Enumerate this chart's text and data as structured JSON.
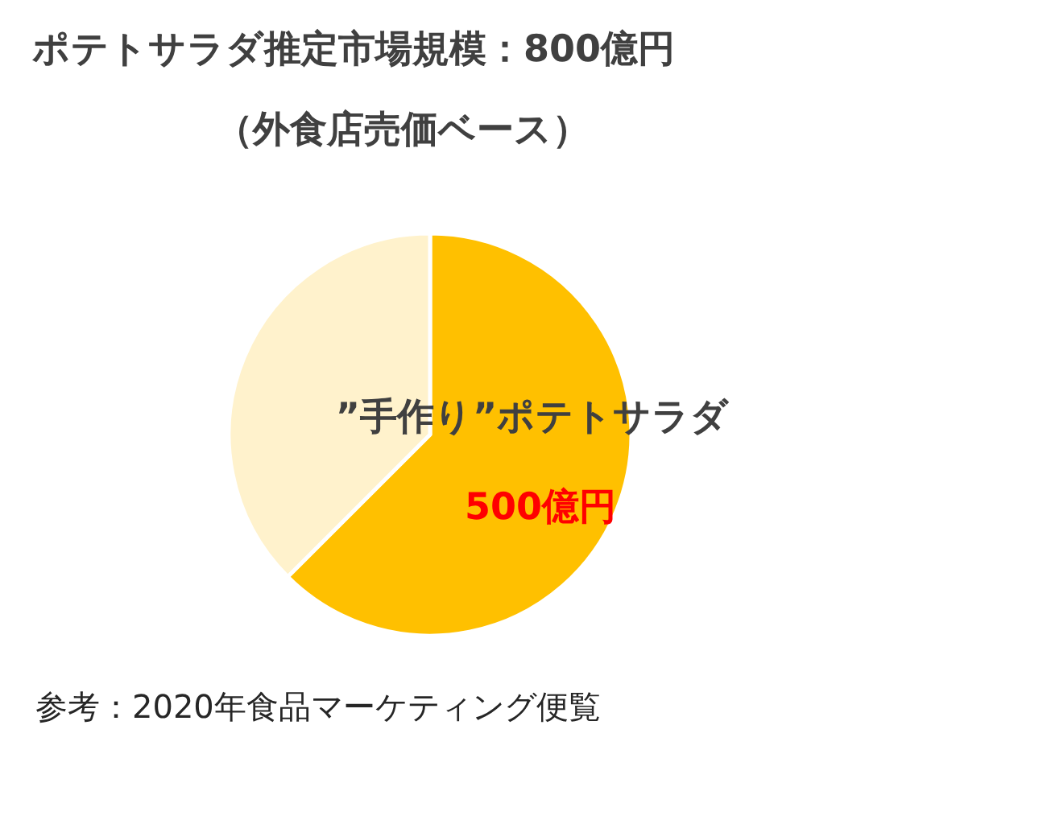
{
  "chart_data": {
    "type": "pie",
    "title": "ポテトサラダ推定市場規模：800億円",
    "subtitle": "（外食店売価ベース）",
    "categories": [
      "”手作り”ポテトサラダ",
      null
    ],
    "values": [
      500,
      300
    ],
    "colors": [
      "#ffc000",
      "#fff2cc"
    ],
    "value_labels": [
      "500億円",
      null
    ],
    "annotations": [
      "参考：2020年食品マーケティング便覧"
    ]
  }
}
